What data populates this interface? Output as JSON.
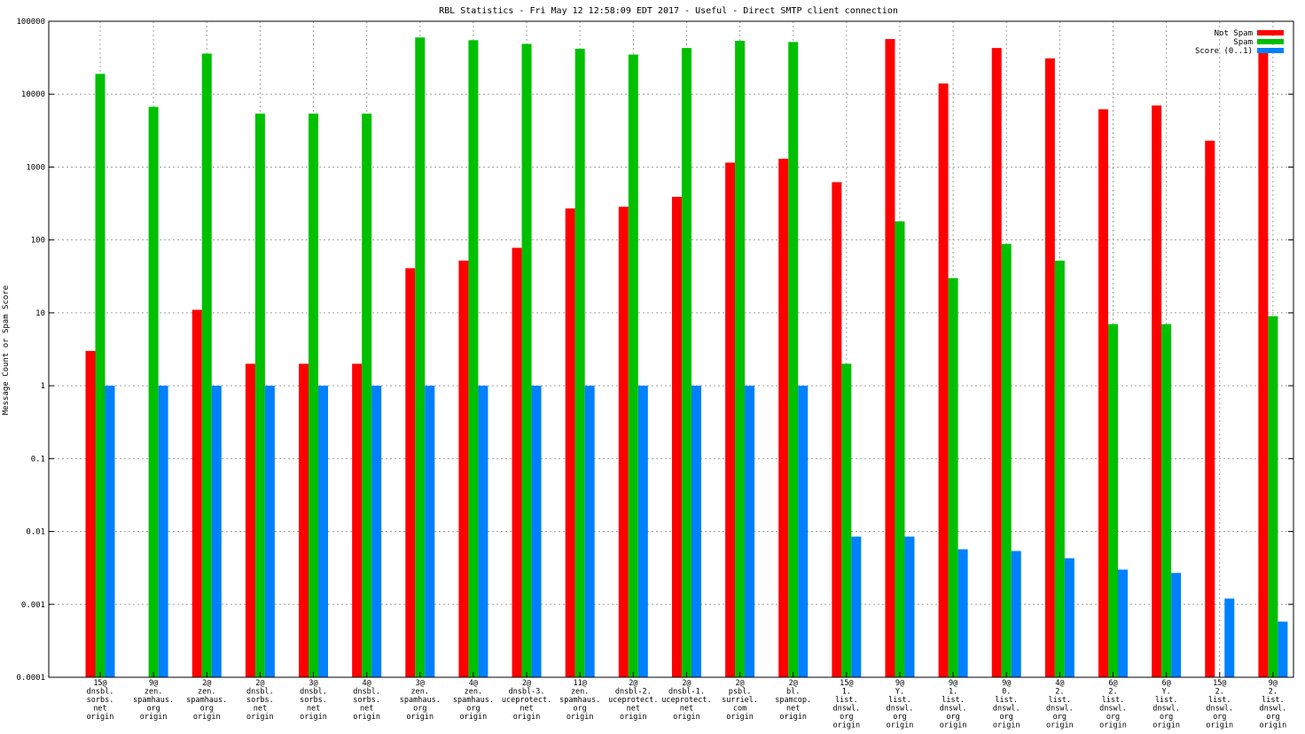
{
  "chart_data": {
    "type": "bar",
    "title": "RBL Statistics - Fri May 12 12:58:09 EDT 2017 - Useful - Direct SMTP client connection",
    "xlabel": "",
    "ylabel": "Message Count or Spam Score",
    "yscale": "log",
    "ylim": [
      0.0001,
      100000
    ],
    "yticks": [
      "0.0001",
      "0.001",
      "0.01",
      "0.1",
      "1",
      "10",
      "100",
      "1000",
      "10000",
      "100000"
    ],
    "grid": true,
    "legend_position": "top-right",
    "categories": [
      [
        "15@",
        "dnsbl.",
        "sorbs.",
        "net",
        "origin"
      ],
      [
        "9@",
        "zen.",
        "spamhaus.",
        "org",
        "origin"
      ],
      [
        "2@",
        "zen.",
        "spamhaus.",
        "org",
        "origin"
      ],
      [
        "2@",
        "dnsbl.",
        "sorbs.",
        "net",
        "origin"
      ],
      [
        "3@",
        "dnsbl.",
        "sorbs.",
        "net",
        "origin"
      ],
      [
        "4@",
        "dnsbl.",
        "sorbs.",
        "net",
        "origin"
      ],
      [
        "3@",
        "zen.",
        "spamhaus.",
        "org",
        "origin"
      ],
      [
        "4@",
        "zen.",
        "spamhaus.",
        "org",
        "origin"
      ],
      [
        "2@",
        "dnsbl-3.",
        "uceprotect.",
        "net",
        "origin"
      ],
      [
        "11@",
        "zen.",
        "spamhaus.",
        "org",
        "origin"
      ],
      [
        "2@",
        "dnsbl-2.",
        "uceprotect.",
        "net",
        "origin"
      ],
      [
        "2@",
        "dnsbl-1.",
        "uceprotect.",
        "net",
        "origin"
      ],
      [
        "2@",
        "psbl.",
        "surriel.",
        "com",
        "origin"
      ],
      [
        "2@",
        "bl.",
        "spamcop.",
        "net",
        "origin"
      ],
      [
        "15@",
        "1.",
        "list.",
        "dnswl.",
        "org",
        "origin"
      ],
      [
        "9@",
        "Y.",
        "list.",
        "dnswl.",
        "org",
        "origin"
      ],
      [
        "9@",
        "1.",
        "list.",
        "dnswl.",
        "org",
        "origin"
      ],
      [
        "9@",
        "0.",
        "list.",
        "dnswl.",
        "org",
        "origin"
      ],
      [
        "4@",
        "2.",
        "list.",
        "dnswl.",
        "org",
        "origin"
      ],
      [
        "6@",
        "2.",
        "list.",
        "dnswl.",
        "org",
        "origin"
      ],
      [
        "6@",
        "Y.",
        "list.",
        "dnswl.",
        "org",
        "origin"
      ],
      [
        "15@",
        "2.",
        "list.",
        "dnswl.",
        "org",
        "origin"
      ],
      [
        "9@",
        "2.",
        "list.",
        "dnswl.",
        "org",
        "origin"
      ]
    ],
    "series": [
      {
        "name": "Not Spam",
        "color": "#ff0000",
        "values": [
          3,
          null,
          11,
          2,
          2,
          2,
          41,
          52,
          78,
          270,
          285,
          390,
          1150,
          1300,
          620,
          57000,
          14000,
          43000,
          31000,
          6200,
          7000,
          2300,
          40000
        ]
      },
      {
        "name": "Spam",
        "color": "#00c000",
        "values": [
          19000,
          6700,
          36000,
          5400,
          5400,
          5400,
          60000,
          55000,
          49000,
          42000,
          35000,
          43000,
          54000,
          52000,
          2,
          180,
          30,
          88,
          52,
          7,
          7,
          null,
          9
        ]
      },
      {
        "name": "Score (0..1)",
        "color": "#0080ff",
        "values": [
          1,
          1,
          1,
          1,
          1,
          1,
          1,
          1,
          1,
          1,
          1,
          1,
          1,
          1,
          0.0085,
          0.0085,
          0.0057,
          0.0054,
          0.0043,
          0.003,
          0.0027,
          0.0012,
          0.00058
        ]
      }
    ]
  }
}
